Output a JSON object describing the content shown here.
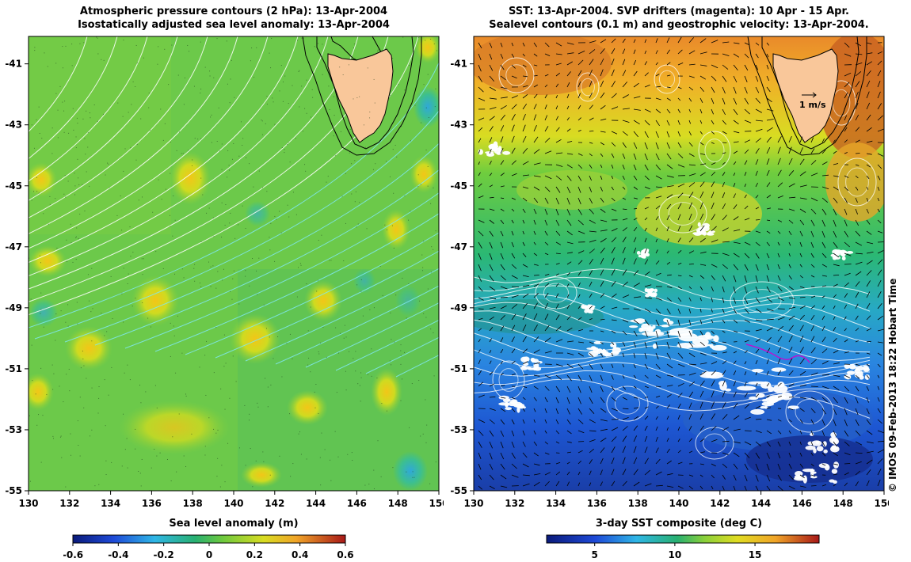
{
  "left_panel": {
    "title_line1": "Atmospheric pressure contours (2 hPa): 13-Apr-2004",
    "title_line2": "Isostatically adjusted sea level anomaly: 13-Apr-2004",
    "colorbar_label": "Sea level anomaly (m)",
    "colorbar_ticks": [
      "-0.6",
      "-0.4",
      "-0.2",
      "0",
      "0.2",
      "0.4",
      "0.6"
    ],
    "colorbar_range": [
      -0.6,
      0.6
    ]
  },
  "right_panel": {
    "title_line1": "SST: 13-Apr-2004. SVP drifters (magenta): 10 Apr - 15 Apr.",
    "title_line2": "Sealevel contours (0.1 m) and geostrophic velocity: 13-Apr-2004.",
    "colorbar_label": "3-day SST composite (deg C)",
    "colorbar_ticks": [
      "5",
      "10",
      "15"
    ],
    "colorbar_range": [
      2,
      19
    ],
    "velocity_scale_label": "1 m/s"
  },
  "axes": {
    "x_ticks": [
      "130",
      "132",
      "134",
      "136",
      "138",
      "140",
      "142",
      "144",
      "146",
      "148",
      "150"
    ],
    "y_ticks": [
      "-41",
      "-43",
      "-45",
      "-47",
      "-49",
      "-51",
      "-53",
      "-55"
    ],
    "lon_range": [
      130,
      150
    ],
    "lat_range": [
      -55,
      -40.1
    ]
  },
  "copyright": "© IMOS 09-Feb-2013 18:22 Hobart Time",
  "colors": {
    "land": "#f9c79a",
    "pressure_contour_white": "#ffffff",
    "pressure_contour_cyan": "#7fe8f0",
    "drifter": "#d000d0"
  }
}
